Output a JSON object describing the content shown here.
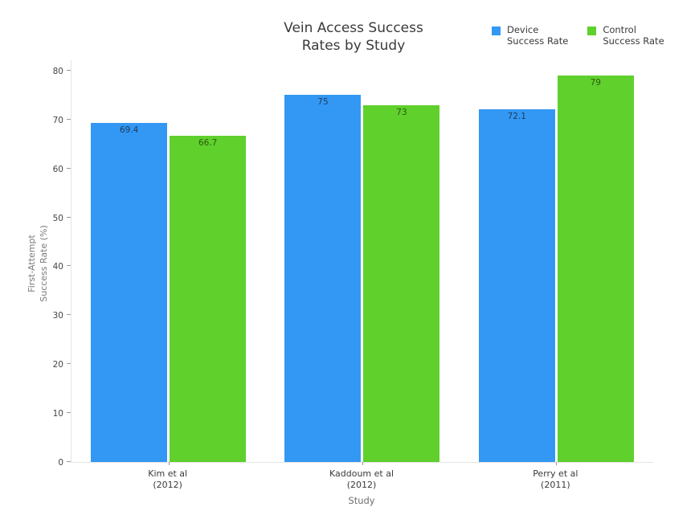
{
  "chart_data": {
    "type": "bar",
    "title": "Vein Access Success\nRates by Study",
    "xlabel": "Study",
    "ylabel": "First-Attempt\nSuccess Rate (%)",
    "categories": [
      "Kim et al\n(2012)",
      "Kaddoum et al\n(2012)",
      "Perry et al\n(2011)"
    ],
    "series": [
      {
        "name": "Device\nSuccess Rate",
        "color": "#3398f4",
        "label_color": "#1f3a5a",
        "values": [
          69.4,
          75,
          72.1
        ]
      },
      {
        "name": "Control\nSuccess Rate",
        "color": "#5fd02c",
        "label_color": "#2d5a12",
        "values": [
          66.7,
          73,
          79
        ]
      }
    ],
    "ylim": [
      0,
      80
    ],
    "yticks": [
      0,
      10,
      20,
      30,
      40,
      50,
      60,
      70,
      80
    ],
    "grid": false,
    "legend_position": "top-right",
    "bar_label_position": "inside-top",
    "background_color": "#ffffff",
    "axis_line_color": "#e5e5e5",
    "tick_mark_color": "#999999"
  }
}
